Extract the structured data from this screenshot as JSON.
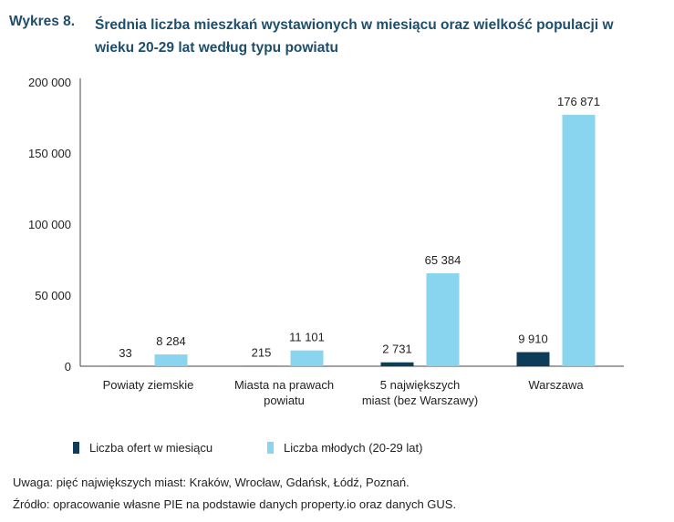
{
  "figure": {
    "number": "Wykres 8.",
    "title": "Średnia liczba mieszkań wystawionych w miesiącu oraz wielkość populacji w wieku 20-29 lat według typu powiatu"
  },
  "colors": {
    "offers": "#0d3d58",
    "young": "#89d4ee",
    "title": "#1d4e6b"
  },
  "chart_data": {
    "type": "bar",
    "title": "Średnia liczba mieszkań wystawionych w miesiącu oraz wielkość populacji w wieku 20-29 lat według typu powiatu",
    "categories": [
      [
        "Powiaty ziemskie"
      ],
      [
        "Miasta na prawach",
        "powiatu"
      ],
      [
        "5 największych",
        "miast (bez Warszawy)"
      ],
      [
        "Warszawa"
      ]
    ],
    "series": [
      {
        "name": "Liczba ofert w miesiącu",
        "values": [
          33,
          215,
          2731,
          9910
        ],
        "labels": [
          "33",
          "215",
          "2 731",
          "9 910"
        ]
      },
      {
        "name": "Liczba młodych (20-29 lat)",
        "values": [
          8284,
          11101,
          65384,
          176871
        ],
        "labels": [
          "8 284",
          "11 101",
          "65 384",
          "176 871"
        ]
      }
    ],
    "ylim": [
      0,
      200000
    ],
    "yticks": [
      0,
      50000,
      100000,
      150000,
      200000
    ],
    "ytick_labels": [
      "0",
      "50 000",
      "100 000",
      "150 000",
      "200 000"
    ],
    "xlabel": "",
    "ylabel": "",
    "grid": false,
    "legend": "bottom"
  },
  "notes": {
    "note": "Uwaga: pięć największych miast: Kraków, Wrocław, Gdańsk, Łódź, Poznań.",
    "source": "Źródło: opracowanie własne PIE na podstawie danych property.io oraz danych GUS."
  }
}
